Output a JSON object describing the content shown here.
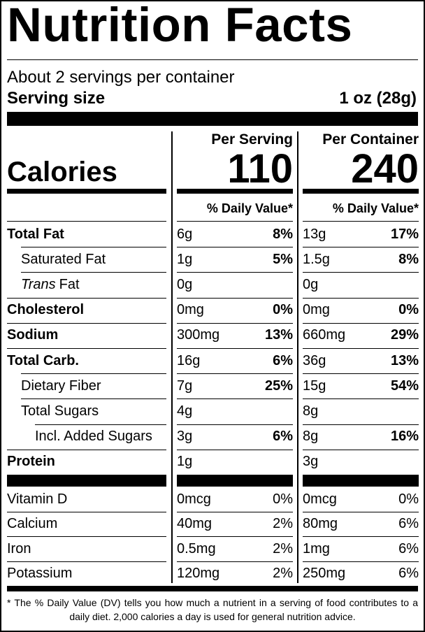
{
  "title": "Nutrition Facts",
  "servings": "About 2 servings per container",
  "serving_size_label": "Serving size",
  "serving_size": "1 oz (28g)",
  "columns": [
    "Per Serving",
    "Per Container"
  ],
  "calories_label": "Calories",
  "calories": [
    "110",
    "240"
  ],
  "dv_header": "% Daily Value*",
  "nutrients": [
    {
      "name": "Total Fat",
      "bold": true,
      "indent": 0,
      "values": [
        {
          "amount": "6g",
          "dv": "8%"
        },
        {
          "amount": "13g",
          "dv": "17%"
        }
      ]
    },
    {
      "name": "Saturated Fat",
      "indent": 1,
      "values": [
        {
          "amount": "1g",
          "dv": "5%"
        },
        {
          "amount": "1.5g",
          "dv": "8%"
        }
      ]
    },
    {
      "name_italic": "Trans",
      "name": "Fat",
      "indent": 1,
      "values": [
        {
          "amount": "0g"
        },
        {
          "amount": "0g"
        }
      ]
    },
    {
      "name": "Cholesterol",
      "bold": true,
      "indent": 0,
      "values": [
        {
          "amount": "0mg",
          "dv": "0%"
        },
        {
          "amount": "0mg",
          "dv": "0%"
        }
      ]
    },
    {
      "name": "Sodium",
      "bold": true,
      "indent": 0,
      "values": [
        {
          "amount": "300mg",
          "dv": "13%"
        },
        {
          "amount": "660mg",
          "dv": "29%"
        }
      ]
    },
    {
      "name": "Total Carb.",
      "bold": true,
      "indent": 0,
      "values": [
        {
          "amount": "16g",
          "dv": "6%"
        },
        {
          "amount": "36g",
          "dv": "13%"
        }
      ]
    },
    {
      "name": "Dietary Fiber",
      "indent": 1,
      "values": [
        {
          "amount": "7g",
          "dv": "25%"
        },
        {
          "amount": "15g",
          "dv": "54%"
        }
      ]
    },
    {
      "name": "Total Sugars",
      "indent": 1,
      "values": [
        {
          "amount": "4g"
        },
        {
          "amount": "8g"
        }
      ]
    },
    {
      "name": "Incl. Added Sugars",
      "indent": 2,
      "values": [
        {
          "amount": "3g",
          "dv": "6%"
        },
        {
          "amount": "8g",
          "dv": "16%"
        }
      ]
    },
    {
      "name": "Protein",
      "bold": true,
      "indent": 0,
      "values": [
        {
          "amount": "1g"
        },
        {
          "amount": "3g"
        }
      ]
    }
  ],
  "vitamins": [
    {
      "name": "Vitamin D",
      "values": [
        {
          "amount": "0mcg",
          "dv": "0%"
        },
        {
          "amount": "0mcg",
          "dv": "0%"
        }
      ]
    },
    {
      "name": "Calcium",
      "values": [
        {
          "amount": "40mg",
          "dv": "2%"
        },
        {
          "amount": "80mg",
          "dv": "6%"
        }
      ]
    },
    {
      "name": "Iron",
      "values": [
        {
          "amount": "0.5mg",
          "dv": "2%"
        },
        {
          "amount": "1mg",
          "dv": "6%"
        }
      ]
    },
    {
      "name": "Potassium",
      "values": [
        {
          "amount": "120mg",
          "dv": "2%"
        },
        {
          "amount": "250mg",
          "dv": "6%"
        }
      ]
    }
  ],
  "footnote": "* The % Daily Value (DV) tells you how much a nutrient in a serving of food contributes to a daily diet. 2,000 calories a day is used for general nutrition advice."
}
